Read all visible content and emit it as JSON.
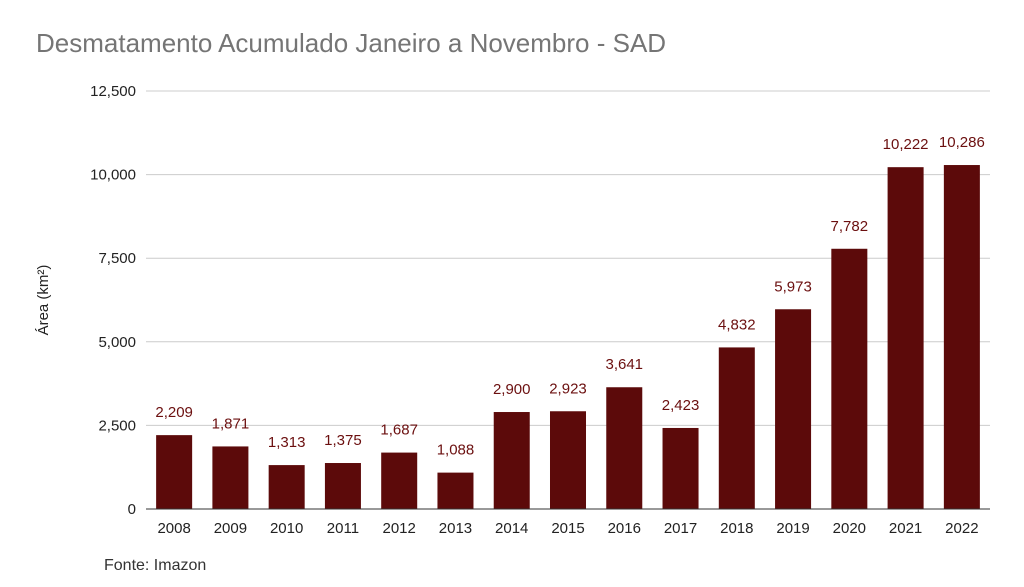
{
  "chart_data": {
    "type": "bar",
    "title": "Desmatamento Acumulado Janeiro a Novembro - SAD",
    "xlabel": "",
    "ylabel": "Área (km²)",
    "categories": [
      "2008",
      "2009",
      "2010",
      "2011",
      "2012",
      "2013",
      "2014",
      "2015",
      "2016",
      "2017",
      "2018",
      "2019",
      "2020",
      "2021",
      "2022"
    ],
    "values": [
      2209,
      1871,
      1313,
      1375,
      1687,
      1088,
      2900,
      2923,
      3641,
      2423,
      4832,
      5973,
      7782,
      10222,
      10286
    ],
    "data_labels": [
      "2,209",
      "1,871",
      "1,313",
      "1,375",
      "1,687",
      "1,088",
      "2,900",
      "2,923",
      "3,641",
      "2,423",
      "4,832",
      "5,973",
      "7,782",
      "10,222",
      "10,286"
    ],
    "ylim": [
      0,
      12500
    ],
    "yticks": [
      0,
      2500,
      5000,
      7500,
      10000,
      12500
    ],
    "ytick_labels": [
      "0",
      "2,500",
      "5,000",
      "7,500",
      "10,000",
      "12,500"
    ],
    "grid": true,
    "legend": "none",
    "bar_color": "#5c0a0a",
    "label_color": "#6b0f0f",
    "grid_color": "#cccccc"
  },
  "source": "Fonte: Imazon"
}
